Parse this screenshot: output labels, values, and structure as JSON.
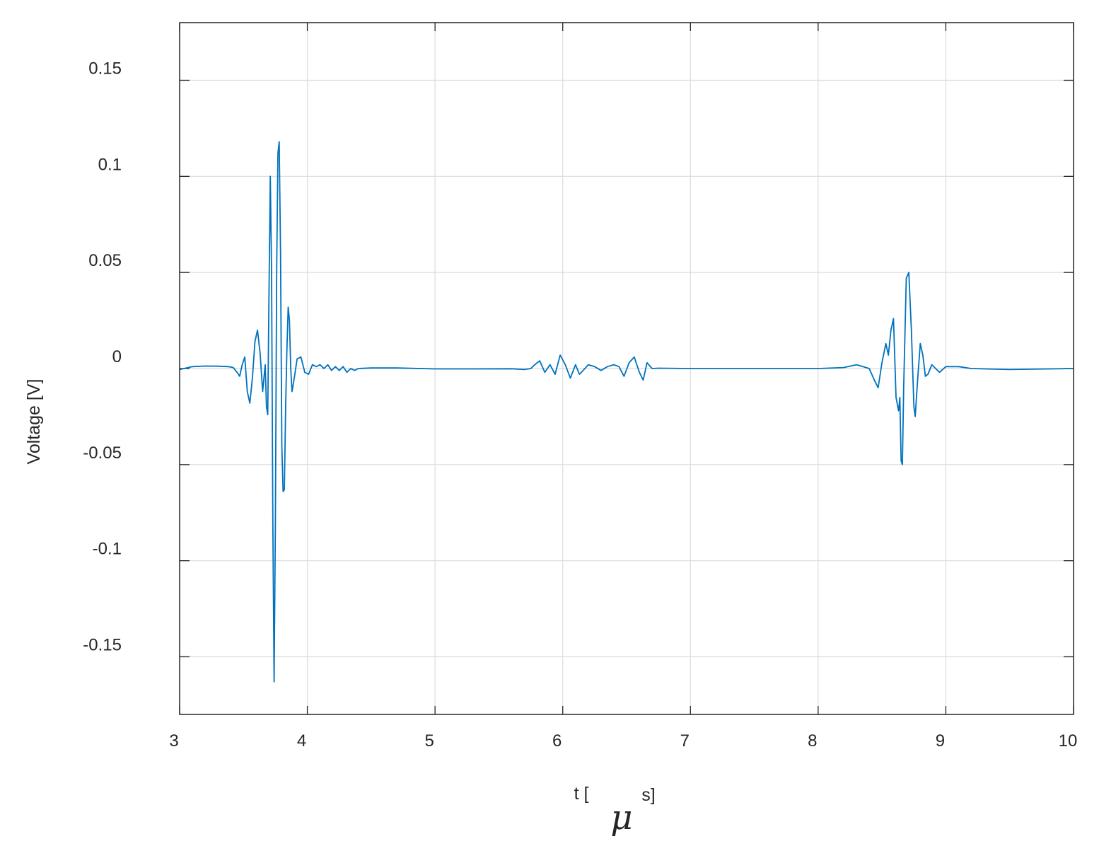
{
  "chart_data": {
    "type": "line",
    "title": "",
    "xlabel": {
      "pre": "t [",
      "mu": "μ",
      "post": "s]"
    },
    "ylabel": "Voltage [V]",
    "xlim": [
      3,
      10
    ],
    "ylim": [
      -0.18,
      0.18
    ],
    "grid": true,
    "legend": "none",
    "xticks": [
      3,
      4,
      5,
      6,
      7,
      8,
      9,
      10
    ],
    "xtick_labels": [
      "3",
      "4",
      "5",
      "6",
      "7",
      "8",
      "9",
      "10"
    ],
    "yticks": [
      0.15,
      0.1,
      0.05,
      0,
      -0.05,
      -0.1,
      -0.15
    ],
    "ytick_labels": [
      "0.15",
      "0.1",
      "0.05",
      "0",
      "-0.05",
      "-0.1",
      "-0.15"
    ],
    "series": [
      {
        "color": "#0072BD",
        "x": [
          3.0,
          3.1,
          3.2,
          3.3,
          3.38,
          3.42,
          3.45,
          3.47,
          3.49,
          3.51,
          3.53,
          3.55,
          3.57,
          3.59,
          3.61,
          3.63,
          3.65,
          3.66,
          3.67,
          3.68,
          3.69,
          3.7,
          3.71,
          3.72,
          3.73,
          3.74,
          3.75,
          3.76,
          3.77,
          3.78,
          3.79,
          3.8,
          3.81,
          3.82,
          3.83,
          3.84,
          3.85,
          3.86,
          3.87,
          3.88,
          3.89,
          3.9,
          3.92,
          3.95,
          3.98,
          4.01,
          4.04,
          4.07,
          4.1,
          4.13,
          4.16,
          4.19,
          4.22,
          4.25,
          4.28,
          4.31,
          4.34,
          4.37,
          4.4,
          4.5,
          4.7,
          5.0,
          5.3,
          5.6,
          5.7,
          5.75,
          5.78,
          5.82,
          5.86,
          5.9,
          5.94,
          5.98,
          6.02,
          6.06,
          6.1,
          6.13,
          6.16,
          6.2,
          6.25,
          6.3,
          6.35,
          6.4,
          6.44,
          6.48,
          6.52,
          6.56,
          6.6,
          6.63,
          6.66,
          6.7,
          6.75,
          7.0,
          7.5,
          8.0,
          8.2,
          8.3,
          8.35,
          8.4,
          8.44,
          8.47,
          8.5,
          8.53,
          8.55,
          8.57,
          8.59,
          8.61,
          8.63,
          8.64,
          8.65,
          8.66,
          8.67,
          8.69,
          8.71,
          8.73,
          8.75,
          8.76,
          8.78,
          8.8,
          8.82,
          8.84,
          8.86,
          8.89,
          8.92,
          8.95,
          9.0,
          9.1,
          9.2,
          9.5,
          10.0
        ],
        "y": [
          -0.0005,
          0.001,
          0.0013,
          0.0012,
          0.001,
          0.0005,
          -0.002,
          -0.004,
          0.002,
          0.006,
          -0.012,
          -0.018,
          -0.005,
          0.014,
          0.02,
          0.008,
          -0.012,
          -0.005,
          0.002,
          -0.02,
          -0.024,
          0.04,
          0.1,
          0.05,
          -0.08,
          -0.163,
          -0.08,
          0.05,
          0.112,
          0.118,
          0.06,
          -0.04,
          -0.064,
          -0.063,
          -0.02,
          0.01,
          0.032,
          0.025,
          0.0,
          -0.012,
          -0.008,
          -0.004,
          0.005,
          0.006,
          -0.002,
          -0.003,
          0.002,
          0.001,
          0.002,
          0.0,
          0.002,
          -0.001,
          0.001,
          -0.001,
          0.001,
          -0.002,
          0.0,
          -0.001,
          0.0,
          0.0003,
          0.0003,
          -0.0002,
          -0.0002,
          -0.0001,
          -0.0005,
          0.0,
          0.002,
          0.004,
          -0.002,
          0.002,
          -0.003,
          0.007,
          0.002,
          -0.005,
          0.002,
          -0.003,
          -0.001,
          0.002,
          0.001,
          -0.001,
          0.001,
          0.002,
          0.001,
          -0.004,
          0.003,
          0.006,
          -0.002,
          -0.006,
          0.003,
          0.0,
          0.0002,
          0.0,
          0.0,
          0.0,
          0.0005,
          0.002,
          0.001,
          0.0,
          -0.006,
          -0.01,
          0.003,
          0.013,
          0.007,
          0.02,
          0.026,
          -0.015,
          -0.022,
          -0.015,
          -0.048,
          -0.05,
          -0.01,
          0.047,
          0.05,
          0.02,
          -0.02,
          -0.025,
          -0.005,
          0.013,
          0.007,
          -0.004,
          -0.003,
          0.002,
          0.0,
          -0.002,
          0.001,
          0.001,
          0.0,
          -0.0005,
          0.0
        ]
      }
    ]
  }
}
